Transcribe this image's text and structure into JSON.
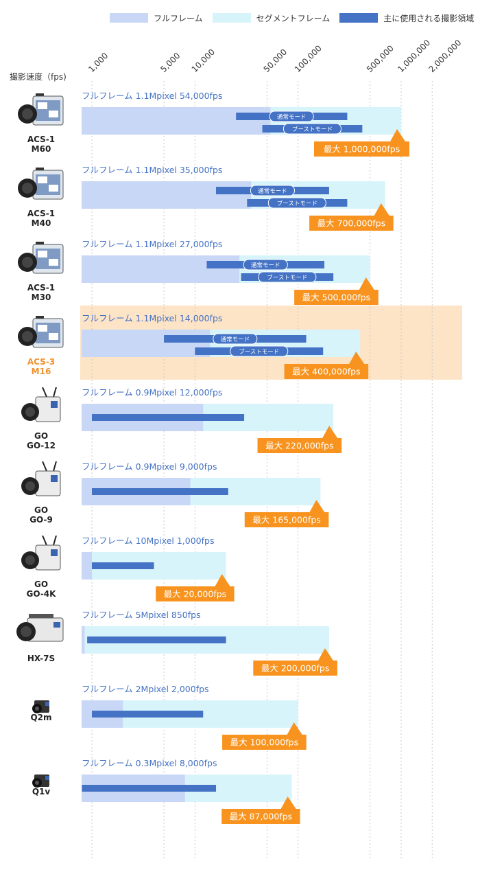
{
  "legend": {
    "full_frame": "フルフレーム",
    "segment_frame": "セグメントフレーム",
    "main_range": "主に使用される撮影領域"
  },
  "axis_title": "撮影速度（fps)",
  "colors": {
    "full_frame": "#c9d7f7",
    "segment_frame": "#d8f4fb",
    "main_range": "#4472c4",
    "max_callout": "#f7931e",
    "highlight_band": "#fde4c6",
    "spec_text": "#4472c4",
    "highlight_name": "#f0922e"
  },
  "chart_data": {
    "type": "bar",
    "scale": "log",
    "xlim": [
      800,
      2500000
    ],
    "ticks": [
      "1,000",
      "5,000",
      "10,000",
      "50,000",
      "100,000",
      "500,000",
      "1,000,000",
      "2,000,000"
    ],
    "tick_values": [
      1000,
      5000,
      10000,
      50000,
      100000,
      500000,
      1000000,
      2000000
    ],
    "grid": true,
    "legend_position": "top",
    "cameras": [
      {
        "model": "ACS-1",
        "sub": "M60",
        "spec": "フルフレーム 1.1Mpixel 54,000fps",
        "max_label": "最大 1,000,000fps",
        "full_fps": 54000,
        "max_fps": 1000000,
        "highlight": false,
        "icon": "camera-acs-icon",
        "modes": [
          {
            "label": "通常モード",
            "from": 25000,
            "to": 300000
          },
          {
            "label": "ブーストモード",
            "from": 45000,
            "to": 420000
          }
        ]
      },
      {
        "model": "ACS-1",
        "sub": "M40",
        "spec": "フルフレーム 1.1Mpixel 35,000fps",
        "max_label": "最大 700,000fps",
        "full_fps": 35000,
        "max_fps": 700000,
        "highlight": false,
        "icon": "camera-acs-icon",
        "modes": [
          {
            "label": "通常モード",
            "from": 16000,
            "to": 200000
          },
          {
            "label": "ブーストモード",
            "from": 32000,
            "to": 300000
          }
        ]
      },
      {
        "model": "ACS-1",
        "sub": "M30",
        "spec": "フルフレーム 1.1Mpixel 27,000fps",
        "max_label": "最大 500,000fps",
        "full_fps": 27000,
        "max_fps": 500000,
        "highlight": false,
        "icon": "camera-acs-icon",
        "modes": [
          {
            "label": "通常モード",
            "from": 13000,
            "to": 180000
          },
          {
            "label": "ブーストモード",
            "from": 28000,
            "to": 220000
          }
        ]
      },
      {
        "model": "ACS-3",
        "sub": "M16",
        "spec": "フルフレーム 1.1Mpixel 14,000fps",
        "max_label": "最大 400,000fps",
        "full_fps": 14000,
        "max_fps": 400000,
        "highlight": true,
        "icon": "camera-acs-icon",
        "modes": [
          {
            "label": "通常モード",
            "from": 5000,
            "to": 120000
          },
          {
            "label": "ブーストモード",
            "from": 10000,
            "to": 175000
          }
        ]
      },
      {
        "model": "GO",
        "sub": "GO-12",
        "spec": "フルフレーム 0.9Mpixel   12,000fps",
        "max_label": "最大 220,000fps",
        "full_fps": 12000,
        "max_fps": 220000,
        "highlight": false,
        "icon": "camera-go-icon",
        "modes": [
          {
            "label": "",
            "from": 1000,
            "to": 30000
          }
        ]
      },
      {
        "model": "GO",
        "sub": "GO-9",
        "spec": "フルフレーム 0.9Mpixel   9,000fps",
        "max_label": "最大 165,000fps",
        "full_fps": 9000,
        "max_fps": 165000,
        "highlight": false,
        "icon": "camera-go-icon",
        "modes": [
          {
            "label": "",
            "from": 1000,
            "to": 21000
          }
        ]
      },
      {
        "model": "GO",
        "sub": "GO-4K",
        "spec": "フルフレーム 10Mpixel   1,000fps",
        "max_label": "最大 20,000fps",
        "full_fps": 1000,
        "max_fps": 20000,
        "highlight": false,
        "icon": "camera-go-icon",
        "modes": [
          {
            "label": "",
            "from": 1000,
            "to": 4000
          }
        ]
      },
      {
        "model": "HX-7S",
        "sub": "",
        "spec": "フルフレーム 5Mpixel  850fps",
        "max_label": "最大 200,000fps",
        "full_fps": 850,
        "max_fps": 200000,
        "highlight": false,
        "icon": "camera-hx-icon",
        "modes": [
          {
            "label": "",
            "from": 900,
            "to": 20000
          }
        ]
      },
      {
        "model": "Q2m",
        "sub": "",
        "spec": "フルフレーム 2Mpixel 2,000fps",
        "max_label": "最大 100,000fps",
        "full_fps": 2000,
        "max_fps": 100000,
        "highlight": false,
        "icon": "camera-q-icon",
        "modes": [
          {
            "label": "",
            "from": 1000,
            "to": 12000
          }
        ]
      },
      {
        "model": "Q1v",
        "sub": "",
        "spec": "フルフレーム 0.3Mpixel  8,000fps",
        "max_label": "最大 87,000fps",
        "full_fps": 8000,
        "max_fps": 87000,
        "highlight": false,
        "icon": "camera-q-icon",
        "modes": [
          {
            "label": "",
            "from": 800,
            "to": 16000
          }
        ]
      }
    ]
  }
}
